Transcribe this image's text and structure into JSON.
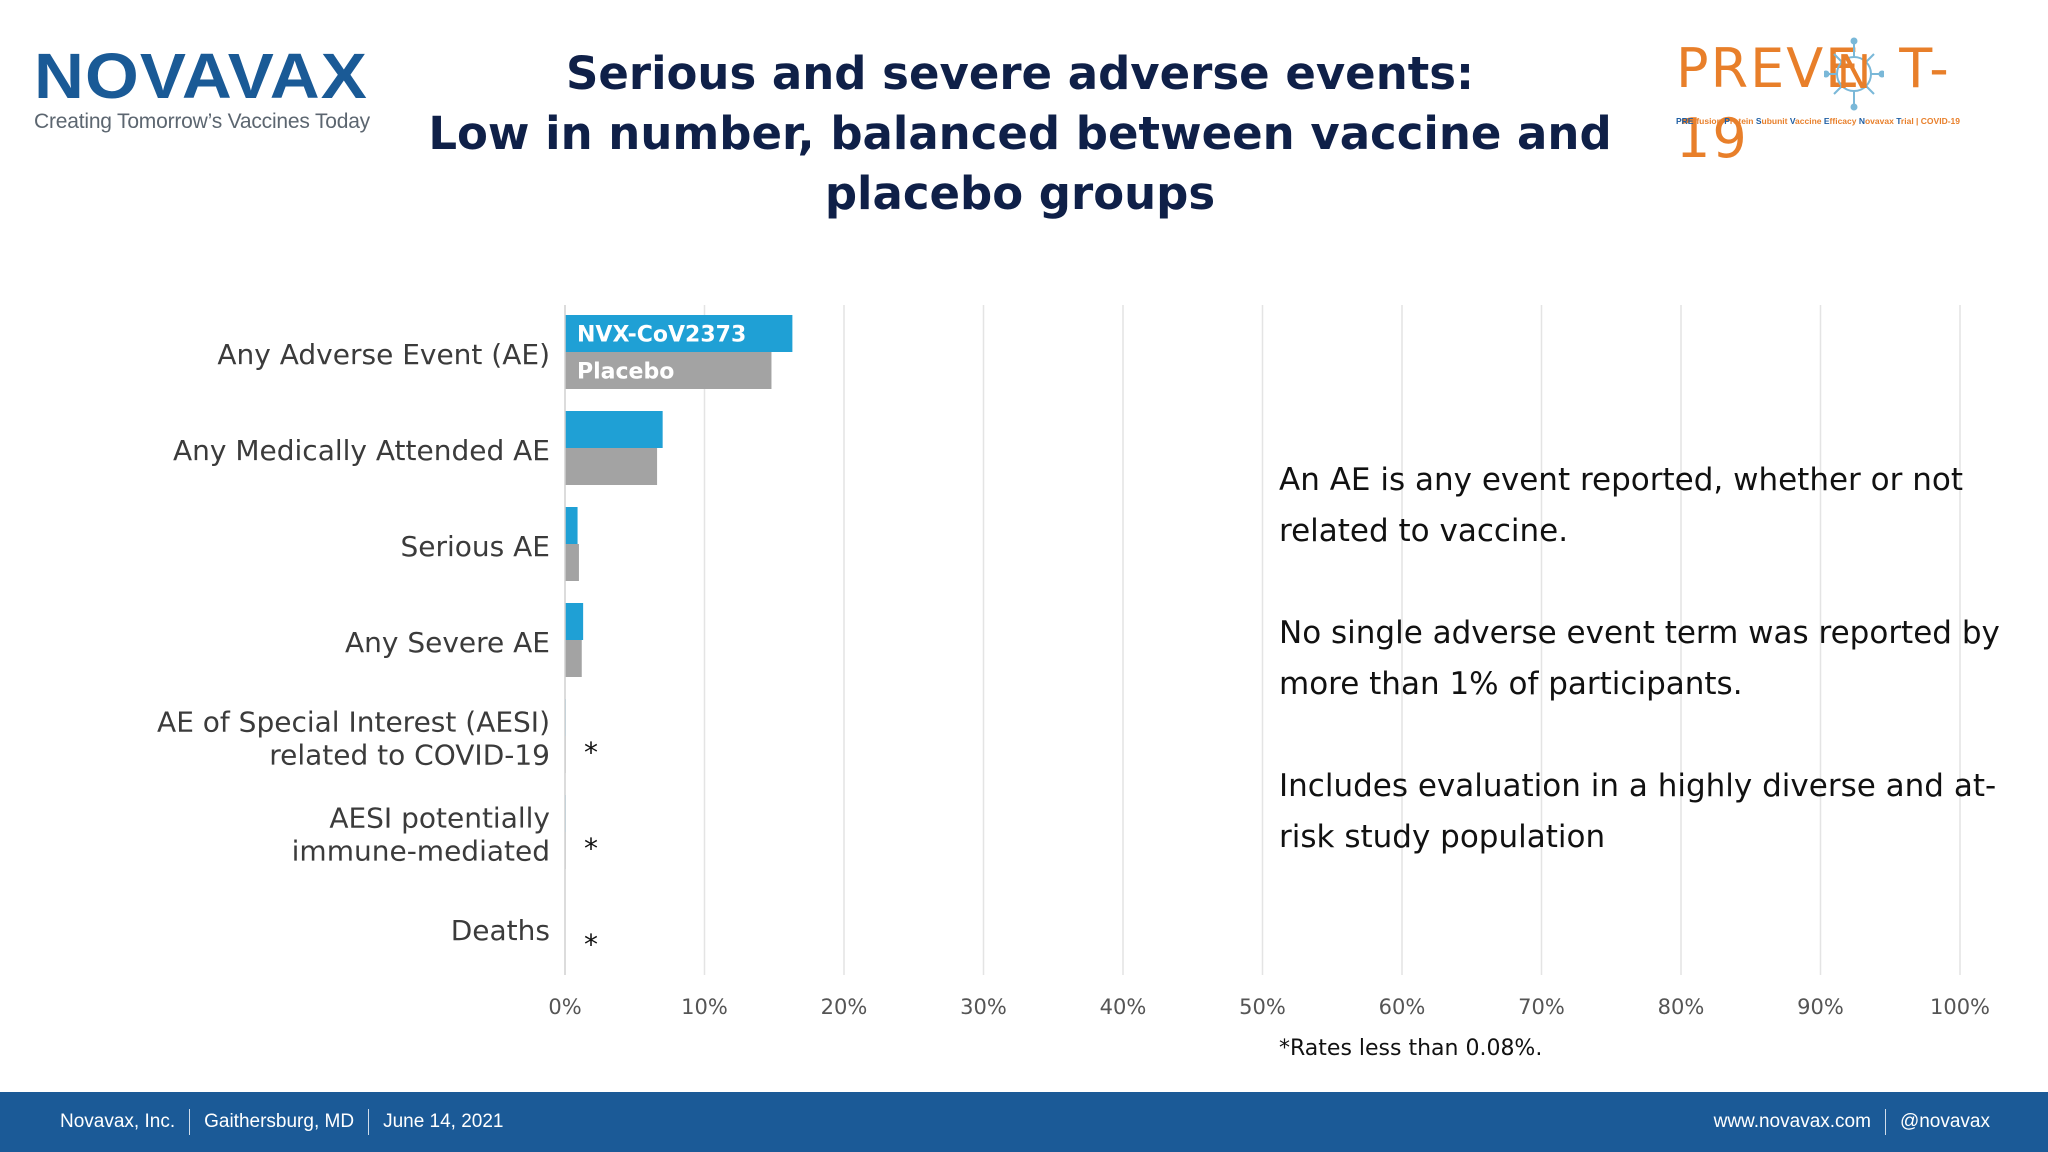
{
  "logo": {
    "name": "NOVAVAX",
    "tagline": "Creating Tomorrow’s Vaccines Today",
    "color": "#1a5a96"
  },
  "title": {
    "line1": "Serious and severe adverse events:",
    "line2": "Low in number, balanced between vaccine and",
    "line3": "placebo groups"
  },
  "trial_logo": {
    "word_left": "PREVE",
    "word_right": "T-19",
    "tagline_parts": [
      "PRE",
      "-fusion ",
      "P",
      "rotein ",
      "S",
      "ubunit ",
      "V",
      "accine ",
      "E",
      "fficacy ",
      "N",
      "ovavax ",
      "T",
      "rial | COVID-19"
    ],
    "color": "#e87f2a"
  },
  "chart_data": {
    "type": "bar",
    "orientation": "horizontal",
    "categories": [
      [
        "Any Adverse Event (AE)"
      ],
      [
        "Any Medically Attended AE"
      ],
      [
        "Serious AE"
      ],
      [
        "Any Severe AE"
      ],
      [
        "AE of Special Interest (AESI)",
        "related to COVID-19"
      ],
      [
        "AESI potentially",
        "immune-mediated"
      ],
      [
        "Deaths"
      ]
    ],
    "series": [
      {
        "name": "NVX-CoV2373",
        "color": "#1fa0d5",
        "values": [
          16.3,
          7.0,
          0.9,
          1.3,
          0.05,
          0.05,
          0.02
        ]
      },
      {
        "name": "Placebo",
        "color": "#a3a3a3",
        "values": [
          14.8,
          6.6,
          1.0,
          1.2,
          0.05,
          0.05,
          0.02
        ]
      }
    ],
    "asterisk_rows": [
      4,
      5,
      6
    ],
    "asterisk": "*",
    "xlim": [
      0,
      100
    ],
    "xticks": [
      0,
      10,
      20,
      30,
      40,
      50,
      60,
      70,
      80,
      90,
      100
    ],
    "tick_suffix": "%",
    "grid": true,
    "legend": "inside-first-bars"
  },
  "notes": [
    "An AE is any event reported, whether or not related to vaccine.",
    "No single adverse event term was reported by more than 1% of participants.",
    "Includes evaluation in a highly diverse and at-risk study population"
  ],
  "footnote": "*Rates less than 0.08%.",
  "footer": {
    "company": "Novavax, Inc.",
    "location": "Gaithersburg, MD",
    "date": "June 14, 2021",
    "website": "www.novavax.com",
    "handle": "@novavax",
    "color": "#1b5a97"
  }
}
